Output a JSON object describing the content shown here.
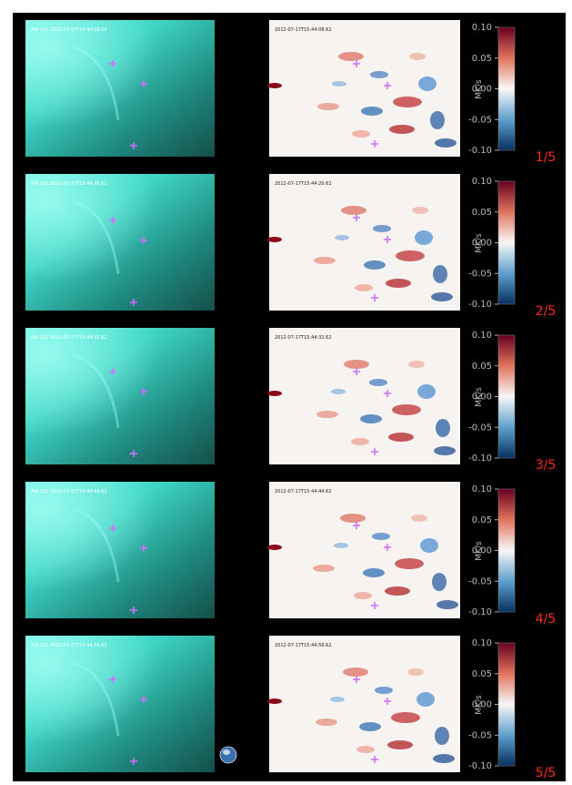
{
  "panels": [
    {
      "left_label": "AIA 131 2012-07-17T15:44:08.62",
      "right_label": "2012-07-17T15:44:08.62",
      "counter": "1/5"
    },
    {
      "left_label": "AIA 131 2012-07-17T15:44:20.62",
      "right_label": "2012-07-17T15:44:20.62",
      "counter": "2/5"
    },
    {
      "left_label": "AIA 131 2012-07-17T15:44:32.62",
      "right_label": "2012-07-17T15:44:32.62",
      "counter": "3/5"
    },
    {
      "left_label": "AIA 131 2012-07-17T15:44:44.62",
      "right_label": "2012-07-17T15:44:44.62",
      "counter": "4/5"
    },
    {
      "left_label": "AIA 131 2012-07-17T15:44:56.62",
      "right_label": "2012-07-17T15:44:56.62",
      "counter": "5/5"
    }
  ],
  "colorbar": {
    "ticks": [
      "0.10",
      "0.05",
      "0.00",
      "-0.05",
      "-0.10"
    ],
    "label": "MK/s"
  }
}
